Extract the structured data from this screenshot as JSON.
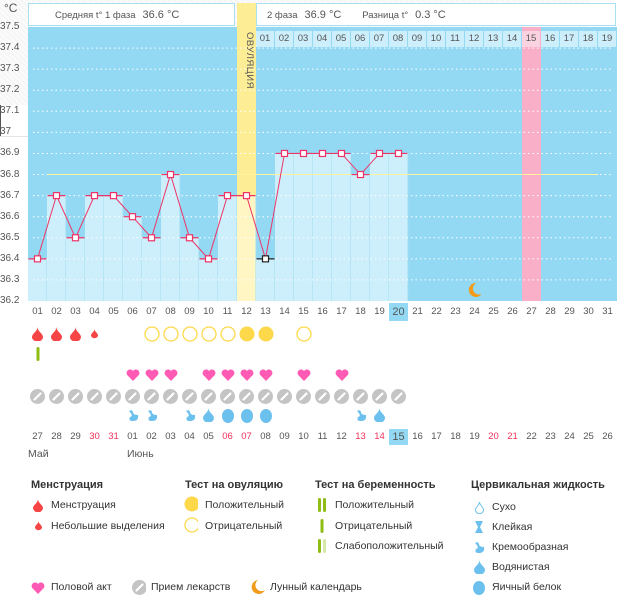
{
  "unit_label": "°C",
  "header": {
    "phase1_label": "Средняя t° 1 фаза",
    "phase1_value": "36.6 °C",
    "phase2_label": "2 фаза",
    "phase2_value": "36.9 °C",
    "diff_label": "Разница t°",
    "diff_value": "0.3 °C",
    "ovulation_label": "ОВУЛЯЦИЯ"
  },
  "colors": {
    "background": "#93d9f3",
    "bar": "#cdeefb",
    "ovulation": "#fdee96",
    "highlight_pink": "#f9afc8",
    "line": "#ee3366",
    "coverline": "#fff3a0"
  },
  "chart_data": {
    "type": "bar",
    "ylim": [
      36.2,
      37.5
    ],
    "y_ticks": [
      "37.5",
      "37.4",
      "37.3",
      "37.2",
      "37.1",
      "37",
      "36.9",
      "36.8",
      "36.7",
      "36.6",
      "36.5",
      "36.4",
      "36.3",
      "36.2"
    ],
    "coverline": 36.8,
    "ovulation_day": 12,
    "highlight_day": 27,
    "current_day": 20,
    "cycle_days": [
      "01",
      "02",
      "03",
      "04",
      "05",
      "06",
      "07",
      "08",
      "09",
      "10",
      "11",
      "12",
      "13",
      "14",
      "15",
      "16",
      "17",
      "18",
      "19",
      "20",
      "21",
      "22",
      "23",
      "24",
      "25",
      "26",
      "27",
      "28",
      "29",
      "30",
      "31"
    ],
    "temperatures": [
      36.4,
      36.7,
      36.5,
      36.7,
      36.7,
      36.6,
      36.5,
      36.8,
      36.5,
      36.4,
      36.7,
      36.7,
      36.4,
      36.9,
      36.9,
      36.9,
      36.9,
      36.8,
      36.9,
      36.9
    ],
    "excluded_days": [
      13
    ],
    "post_ovulation_days": [
      "01",
      "02",
      "03",
      "04",
      "05",
      "06",
      "07",
      "08",
      "09",
      "10",
      "11",
      "12",
      "13",
      "14",
      "15",
      "16",
      "17",
      "18",
      "19"
    ],
    "moon_day": 24
  },
  "rows": {
    "menstruation": {
      "1": "full",
      "2": "full",
      "3": "full",
      "4": "small"
    },
    "pregnancy_test": {
      "1": "negative"
    },
    "ovulation_test": {
      "7": "negative",
      "8": "negative",
      "9": "negative",
      "10": "negative",
      "11": "negative",
      "12": "positive",
      "13": "positive",
      "15": "negative"
    },
    "intercourse": [
      6,
      7,
      8,
      10,
      11,
      12,
      13,
      15,
      17
    ],
    "medication": [
      1,
      2,
      3,
      4,
      5,
      6,
      7,
      8,
      9,
      10,
      11,
      12,
      13,
      14,
      15,
      16,
      17,
      18,
      19,
      20
    ],
    "cervical_fluid": {
      "6": "creamy",
      "7": "creamy",
      "9": "creamy",
      "10": "watery",
      "11": "egg_white",
      "12": "egg_white",
      "13": "egg_white",
      "18": "creamy",
      "19": "watery"
    }
  },
  "dates": [
    "27",
    "28",
    "29",
    "30",
    "31",
    "01",
    "02",
    "03",
    "04",
    "05",
    "06",
    "07",
    "08",
    "09",
    "10",
    "11",
    "12",
    "13",
    "14",
    "15",
    "16",
    "17",
    "18",
    "19",
    "20",
    "21",
    "22",
    "23",
    "24",
    "25",
    "26"
  ],
  "weekend_dates": [
    4,
    5,
    11,
    12,
    18,
    19,
    25,
    26
  ],
  "months": [
    "Май",
    "Июнь"
  ],
  "legend": {
    "menstruation": {
      "title": "Менструация",
      "items": [
        "Менструация",
        "Небольшие выделения"
      ]
    },
    "ovulation_test": {
      "title": "Тест на овуляцию",
      "items": [
        "Положительный",
        "Отрицательный"
      ]
    },
    "pregnancy_test": {
      "title": "Тест на беременность",
      "items": [
        "Положительный",
        "Отрицательный",
        "Слабоположительный"
      ]
    },
    "cervical_fluid": {
      "title": "Цервикальная жидкость",
      "items": [
        "Сухо",
        "Клейкая",
        "Кремообразная",
        "Водянистая",
        "Яичный белок"
      ]
    },
    "other": [
      "Половой акт",
      "Прием лекарств",
      "Лунный календарь"
    ]
  }
}
